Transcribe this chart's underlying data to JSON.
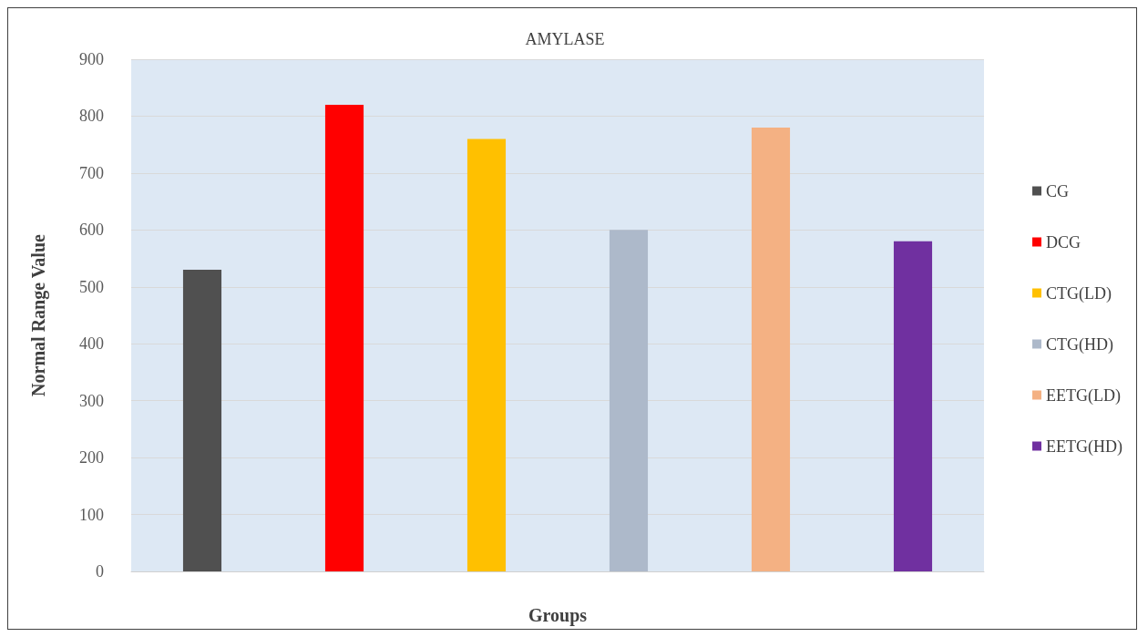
{
  "chart_data": {
    "type": "bar",
    "title": "AMYLASE",
    "xlabel": "Groups",
    "ylabel": "Normal Range Value",
    "categories": [
      null,
      null,
      null,
      null,
      null,
      null
    ],
    "series": [
      {
        "name": "CG",
        "color": "#505050",
        "values": [
          530,
          null,
          null,
          null,
          null,
          null
        ]
      },
      {
        "name": "DCG",
        "color": "#ff0000",
        "values": [
          null,
          820,
          null,
          null,
          null,
          null
        ]
      },
      {
        "name": "CTG(LD)",
        "color": "#ffc000",
        "values": [
          null,
          null,
          760,
          null,
          null,
          null
        ]
      },
      {
        "name": "CTG(HD)",
        "color": "#adb9ca",
        "values": [
          null,
          null,
          null,
          600,
          null,
          null
        ]
      },
      {
        "name": "EETG(LD)",
        "color": "#f4b183",
        "values": [
          null,
          null,
          null,
          null,
          780,
          null
        ]
      },
      {
        "name": "EETG(HD)",
        "color": "#7030a0",
        "values": [
          null,
          null,
          null,
          null,
          null,
          580
        ]
      }
    ],
    "ylim": [
      0,
      900
    ],
    "yticks": [
      0,
      100,
      200,
      300,
      400,
      500,
      600,
      700,
      800,
      900
    ],
    "grid": "y",
    "legend": "right",
    "tick_labels": "y"
  }
}
